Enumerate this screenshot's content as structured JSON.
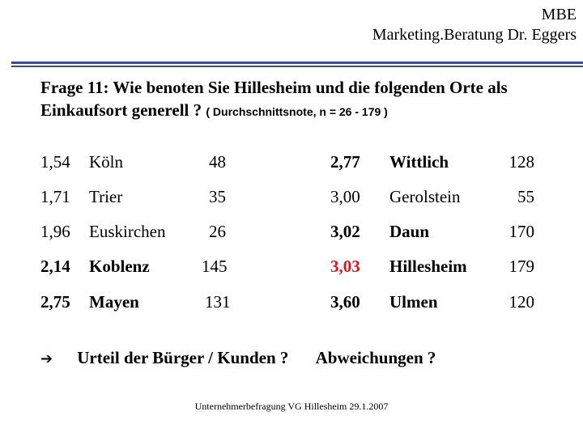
{
  "header": {
    "line1": "MBE",
    "line2": "Marketing.Beratung Dr. Eggers"
  },
  "question": {
    "text": "Frage 11: Wie benoten Sie Hillesheim und die folgenden Orte als Einkaufsort generell ?",
    "note": "( Durchschnittsnote, n = 26 - 179 )"
  },
  "rows": [
    {
      "left": {
        "grade": "1,54",
        "place": "Köln",
        "n": "48"
      },
      "right": {
        "grade": "2,77",
        "place": "Wittlich",
        "n": "128"
      }
    },
    {
      "left": {
        "grade": "1,71",
        "place": "Trier",
        "n": "35"
      },
      "right": {
        "grade": "3,00",
        "place": "Gerolstein",
        "n": "55"
      }
    },
    {
      "left": {
        "grade": "1,96",
        "place": "Euskirchen",
        "n": "26"
      },
      "right": {
        "grade": "3,02",
        "place": "Daun",
        "n": "170"
      }
    },
    {
      "left": {
        "grade": "2,14",
        "place": "Koblenz",
        "n": "145"
      },
      "right": {
        "grade": "3,03",
        "place": "Hillesheim",
        "n": "179"
      }
    },
    {
      "left": {
        "grade": "2,75",
        "place": "Mayen",
        "n": "131"
      },
      "right": {
        "grade": "3,60",
        "place": "Ulmen",
        "n": "120"
      }
    }
  ],
  "conclusion": {
    "arrow_icon": "right-arrow-icon",
    "text1": "Urteil der Bürger / Kunden ?",
    "text2": "Abweichungen ?"
  },
  "footer": "Unternehmerbefragung VG Hillesheim  29.1.2007",
  "colors": {
    "rule": "#3f4a8c",
    "highlight": "#e0141e"
  }
}
